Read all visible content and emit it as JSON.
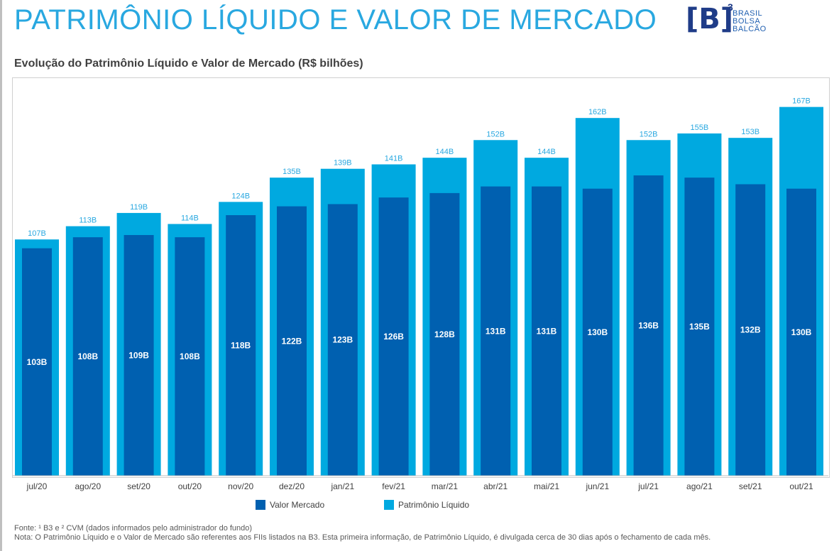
{
  "header": {
    "title": "PATRIMÔNIO LÍQUIDO E VALOR DE MERCADO",
    "logo": {
      "mark": "[B]",
      "superscript": "3",
      "lines": [
        "BRASIL",
        "BOLSA",
        "BALCÃO"
      ]
    }
  },
  "colors": {
    "title": "#29a8e0",
    "valor_mercado": "#0060b0",
    "patrimonio_liquido": "#00a9e0"
  },
  "chart_data": {
    "type": "bar",
    "title": "Evolução do Patrimônio Líquido e Valor de Mercado (R$ bilhões)",
    "categories": [
      "jul/20",
      "ago/20",
      "set/20",
      "out/20",
      "nov/20",
      "dez/20",
      "jan/21",
      "fev/21",
      "mar/21",
      "abr/21",
      "mai/21",
      "jun/21",
      "jul/21",
      "ago/21",
      "set/21",
      "out/21"
    ],
    "series": [
      {
        "name": "Valor Mercado",
        "values": [
          103,
          108,
          109,
          108,
          118,
          122,
          123,
          126,
          128,
          131,
          131,
          130,
          136,
          135,
          132,
          130
        ],
        "labels": [
          "103B",
          "108B",
          "109B",
          "108B",
          "118B",
          "122B",
          "123B",
          "126B",
          "128B",
          "131B",
          "131B",
          "130B",
          "136B",
          "135B",
          "132B",
          "130B"
        ]
      },
      {
        "name": "Patrimônio Líquido",
        "values": [
          107,
          113,
          119,
          114,
          124,
          135,
          139,
          141,
          144,
          152,
          144,
          162,
          152,
          155,
          153,
          167
        ],
        "labels": [
          "107B",
          "113B",
          "119B",
          "114B",
          "124B",
          "135B",
          "139B",
          "141B",
          "144B",
          "152B",
          "144B",
          "162B",
          "152B",
          "155B",
          "153B",
          "167B"
        ]
      }
    ],
    "overlapped": true,
    "legend_position": "bottom",
    "grid": false
  },
  "footnotes": [
    "Fonte: ¹ B3 e ² CVM (dados informados pelo administrador do fundo)",
    "Nota: O Patrimônio Líquido e o Valor de Mercado são referentes aos FIIs listados na B3. Esta primeira informação, de Patrimônio Líquido, é divulgada cerca de 30 dias após o fechamento de cada mês."
  ]
}
